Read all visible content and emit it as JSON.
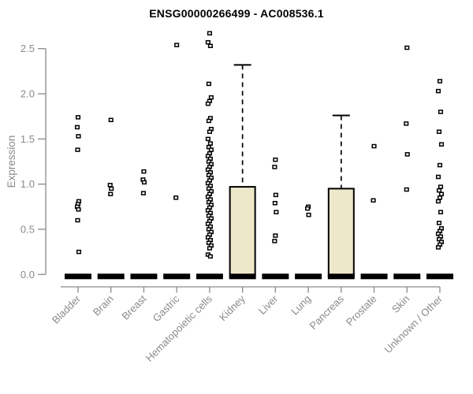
{
  "chart_data": {
    "type": "boxplot",
    "title": "ENSG00000266499 - AC008536.1",
    "ylabel": "Expression",
    "ytick_labels": [
      "0.0",
      "0.5",
      "1.0",
      "1.5",
      "2.0",
      "2.5"
    ],
    "ylim": [
      0,
      2.72
    ],
    "grid": false,
    "legend": "none",
    "marker_style": "open-square",
    "categories": [
      "Bladder",
      "Brain",
      "Breast",
      "Gastric",
      "Hematopoietic cells",
      "Kidney",
      "Liver",
      "Lung",
      "Pancreas",
      "Prostate",
      "Skin",
      "Unknown / Other"
    ],
    "series": [
      {
        "name": "Bladder",
        "median": 0,
        "box": null,
        "points": [
          1.74,
          1.63,
          1.53,
          1.38,
          0.81,
          0.78,
          0.75,
          0.72,
          0.6,
          0.25
        ]
      },
      {
        "name": "Brain",
        "median": 0,
        "box": null,
        "points": [
          1.71,
          0.99,
          0.95,
          0.89
        ]
      },
      {
        "name": "Breast",
        "median": 0,
        "box": null,
        "points": [
          1.14,
          1.05,
          1.02,
          0.9
        ]
      },
      {
        "name": "Gastric",
        "median": 0,
        "box": null,
        "points": [
          2.54,
          0.85
        ]
      },
      {
        "name": "Hematopoietic cells",
        "median": 0,
        "box": null,
        "points": [
          2.67,
          2.57,
          2.53,
          2.11,
          1.96,
          1.92,
          1.89,
          1.73,
          1.7,
          1.61,
          1.58,
          1.5,
          1.45,
          1.41,
          1.38,
          1.34,
          1.31,
          1.28,
          1.25,
          1.22,
          1.19,
          1.16,
          1.13,
          1.1,
          1.07,
          1.04,
          1.01,
          0.98,
          0.95,
          0.92,
          0.89,
          0.86,
          0.83,
          0.8,
          0.77,
          0.74,
          0.71,
          0.68,
          0.65,
          0.62,
          0.59,
          0.56,
          0.53,
          0.5,
          0.47,
          0.44,
          0.41,
          0.38,
          0.35,
          0.32,
          0.29,
          0.22,
          0.2
        ]
      },
      {
        "name": "Kidney",
        "median": 0,
        "box": {
          "q3": 0.97,
          "whisker_high": 2.32
        },
        "points": []
      },
      {
        "name": "Liver",
        "median": 0,
        "box": null,
        "points": [
          1.27,
          1.19,
          0.88,
          0.79,
          0.69,
          0.43,
          0.37
        ]
      },
      {
        "name": "Lung",
        "median": 0,
        "box": null,
        "points": [
          0.75,
          0.73,
          0.66
        ]
      },
      {
        "name": "Pancreas",
        "median": 0,
        "box": {
          "q3": 0.95,
          "whisker_high": 1.76
        },
        "points": []
      },
      {
        "name": "Prostate",
        "median": 0,
        "box": null,
        "points": [
          1.42,
          0.82
        ]
      },
      {
        "name": "Skin",
        "median": 0,
        "box": null,
        "points": [
          2.51,
          1.67,
          1.33,
          0.94
        ]
      },
      {
        "name": "Unknown / Other",
        "median": 0,
        "box": null,
        "points": [
          2.14,
          2.03,
          1.8,
          1.58,
          1.44,
          1.21,
          1.08,
          0.97,
          0.93,
          0.89,
          0.85,
          0.81,
          0.69,
          0.57,
          0.51,
          0.48,
          0.45,
          0.42,
          0.39,
          0.36,
          0.33,
          0.3
        ]
      }
    ],
    "colors": {
      "box_fill": "#EDE8CA",
      "box_stroke": "#000000",
      "median": "#000000",
      "marker_stroke": "#000000",
      "marker_fill": "#ffffff",
      "axis": "#8a8a8a",
      "title": "#000000",
      "background": "#ffffff"
    }
  }
}
